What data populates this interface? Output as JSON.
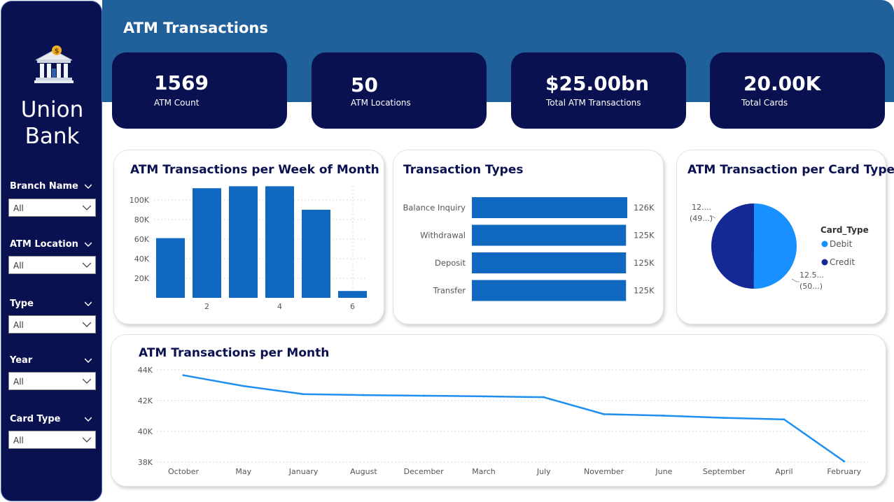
{
  "sidebar": {
    "logo_icon": "bank-building-icon",
    "brand_line1": "Union",
    "brand_line2": "Bank",
    "slicers": [
      {
        "title": "Branch Name",
        "value": "All"
      },
      {
        "title": "ATM Location",
        "value": "All"
      },
      {
        "title": "Type",
        "value": "All"
      },
      {
        "title": "Year",
        "value": "All"
      },
      {
        "title": "Card Type",
        "value": "All"
      }
    ]
  },
  "header": {
    "title": "ATM Transactions"
  },
  "kpis": [
    {
      "value": "1569",
      "label": "ATM Count"
    },
    {
      "value": "50",
      "label": "ATM Locations"
    },
    {
      "value": "$25.00bn",
      "label": "Total ATM Transactions"
    },
    {
      "value": "20.00K",
      "label": "Total Cards"
    }
  ],
  "colors": {
    "navy": "#0a1150",
    "header_blue": "#20609b",
    "bar_blue": "#1068c0",
    "line_blue": "#1e8ff0",
    "debit": "#1890ff",
    "credit": "#142896"
  },
  "chart_data": [
    {
      "type": "bar",
      "title": "ATM Transactions per Week of Month",
      "x": [
        1,
        2,
        3,
        4,
        5,
        6
      ],
      "values": [
        61000,
        112000,
        114000,
        114000,
        90000,
        7000
      ],
      "xticks": [
        "2",
        "4",
        "6"
      ],
      "yticks": [
        "20K",
        "40K",
        "60K",
        "80K",
        "100K"
      ],
      "ylim": [
        0,
        115000
      ],
      "grid": true
    },
    {
      "type": "bar",
      "orientation": "horizontal",
      "title": "Transaction Types",
      "categories": [
        "Balance Inquiry",
        "Withdrawal",
        "Deposit",
        "Transfer"
      ],
      "values": [
        126000,
        125000,
        125000,
        125000
      ],
      "data_labels": [
        "126K",
        "125K",
        "125K",
        "125K"
      ]
    },
    {
      "type": "pie",
      "title": "ATM Transaction per Card Type",
      "legend_title": "Card_Type",
      "labels": [
        "Debit",
        "Credit"
      ],
      "values": [
        50.04,
        49.96
      ],
      "slice_labels": [
        [
          "12.5...",
          "(50...)"
        ],
        [
          "12....",
          "(49...)"
        ]
      ],
      "legend": "right"
    },
    {
      "type": "line",
      "title": "ATM Transactions per Month",
      "categories": [
        "October",
        "May",
        "January",
        "August",
        "December",
        "March",
        "July",
        "November",
        "June",
        "September",
        "April",
        "February"
      ],
      "values": [
        43650,
        42950,
        42420,
        42360,
        42320,
        42280,
        42220,
        41120,
        41020,
        40880,
        40780,
        38050
      ],
      "yticks": [
        "38K",
        "40K",
        "42K",
        "44K"
      ],
      "ylim": [
        38000,
        44000
      ],
      "grid": true
    }
  ]
}
